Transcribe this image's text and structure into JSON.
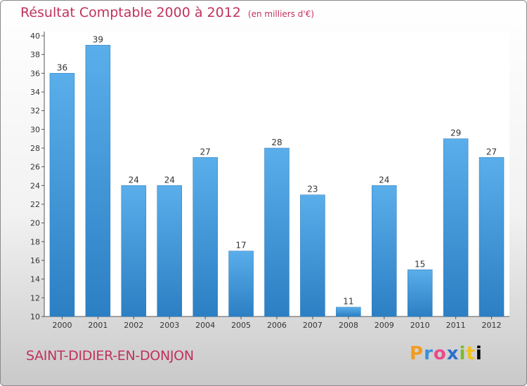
{
  "header": {
    "title": "Résultat Comptable 2000 à 2012",
    "subtitle": "(en milliers d'€)"
  },
  "footer": {
    "city": "SAINT-DIDIER-EN-DONJON",
    "logo": [
      "P",
      "r",
      "o",
      "x",
      "i",
      "t",
      "i"
    ]
  },
  "colors": {
    "title": "#c0325c",
    "bar_top": "#5aaeea",
    "bar_bottom": "#2c7fc3"
  },
  "chart_data": {
    "type": "bar",
    "title": "Résultat Comptable 2000 à 2012",
    "subtitle": "(en milliers d'€)",
    "categories": [
      "2000",
      "2001",
      "2002",
      "2003",
      "2004",
      "2005",
      "2006",
      "2007",
      "2008",
      "2009",
      "2010",
      "2011",
      "2012"
    ],
    "values": [
      36,
      39,
      24,
      24,
      27,
      17,
      28,
      23,
      11,
      24,
      15,
      29,
      27
    ],
    "ylim": [
      10,
      40
    ],
    "yticks": [
      10,
      12,
      14,
      16,
      18,
      20,
      22,
      24,
      26,
      28,
      30,
      32,
      34,
      36,
      38,
      40
    ],
    "grid": false,
    "legend": "none"
  }
}
